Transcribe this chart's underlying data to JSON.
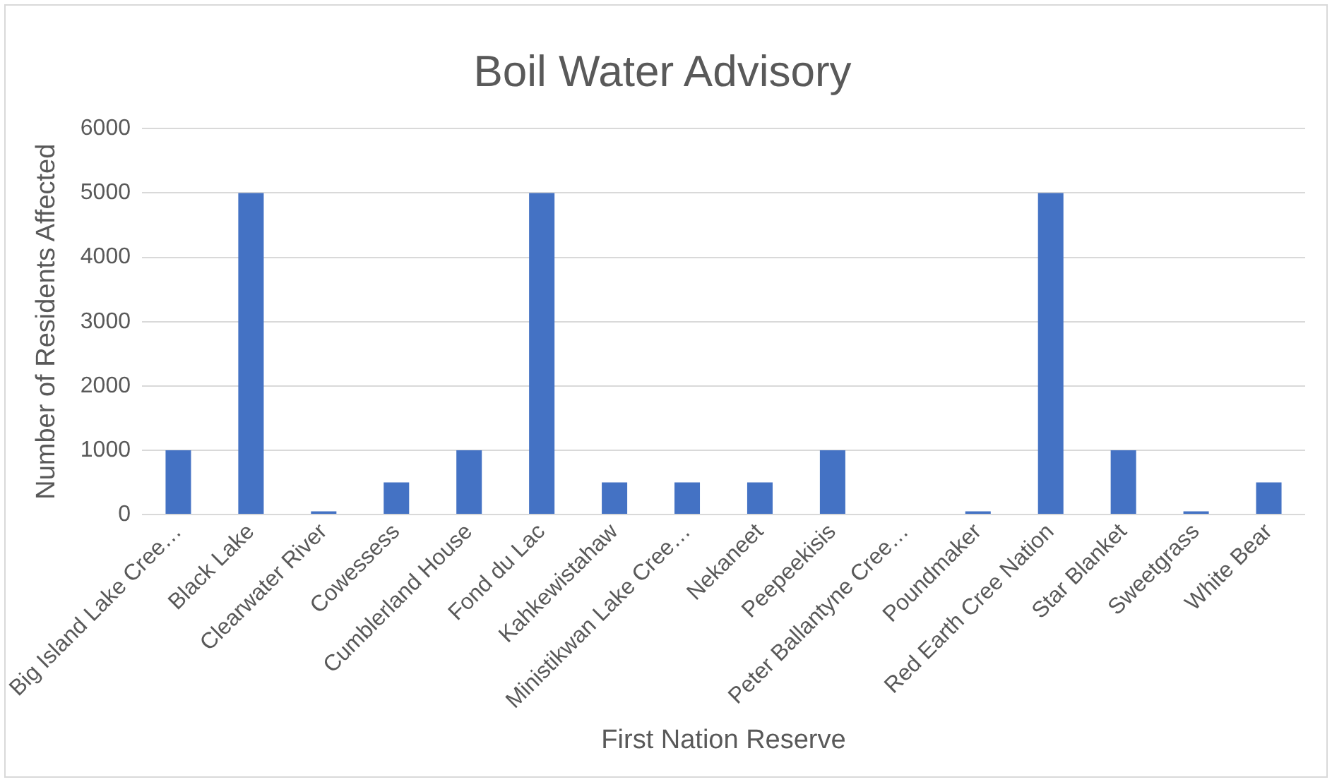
{
  "chart_data": {
    "type": "bar",
    "title": "Boil Water Advisory",
    "xlabel": "First Nation Reserve",
    "ylabel": "Number of Residents Affected",
    "categories": [
      "Big Island Lake Cree…",
      "Black Lake",
      "Clearwater River",
      "Cowessess",
      "Cumblerland House",
      "Fond du Lac",
      "Kahkewistahaw",
      "Ministikwan Lake Cree…",
      "Nekaneet",
      "Peepeekisis",
      "Peter Ballantyne Cree…",
      "Poundmaker",
      "Red Earth Cree Nation",
      "Star Blanket",
      "Sweetgrass",
      "White Bear"
    ],
    "values": [
      1000,
      5000,
      50,
      500,
      1000,
      5000,
      500,
      500,
      500,
      1000,
      0,
      50,
      5000,
      1000,
      50,
      500
    ],
    "color": "#4472c4",
    "ylim": [
      0,
      6000
    ],
    "yticks": [
      0,
      1000,
      2000,
      3000,
      4000,
      5000,
      6000
    ],
    "grid": "y"
  }
}
